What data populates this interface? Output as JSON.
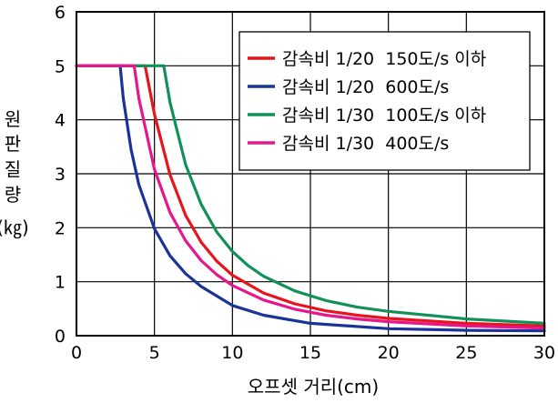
{
  "chart_data": {
    "type": "line",
    "xlabel": "오프셋 거리(cm)",
    "ylabel_lines": [
      "원",
      "판",
      "질",
      "량",
      "(㎏)"
    ],
    "xlim": [
      0,
      30
    ],
    "ylim": [
      0,
      6
    ],
    "xticks": [
      "0",
      "5",
      "10",
      "15",
      "20",
      "25",
      "30"
    ],
    "yticks": [
      "0",
      "1",
      "2",
      "3",
      "4",
      "5",
      "6"
    ],
    "grid": true,
    "legend_position": "top-right",
    "series": [
      {
        "name": "감속비 1/20  150도/s 이하",
        "color": "#e8141c",
        "x": [
          0,
          4.4,
          5,
          6,
          7,
          8,
          9,
          10,
          12,
          14,
          16,
          18,
          20,
          25,
          30
        ],
        "y": [
          5,
          5,
          4.1,
          2.98,
          2.23,
          1.73,
          1.38,
          1.12,
          0.79,
          0.59,
          0.46,
          0.38,
          0.32,
          0.23,
          0.18
        ]
      },
      {
        "name": "감속비 1/20  600도/s",
        "color": "#1a3399",
        "x": [
          0,
          2.8,
          3,
          3.5,
          4,
          5,
          6,
          7,
          8,
          10,
          12,
          15,
          20,
          25,
          30
        ],
        "y": [
          5,
          5,
          4.4,
          3.45,
          2.8,
          1.98,
          1.48,
          1.15,
          0.91,
          0.56,
          0.38,
          0.23,
          0.13,
          0.1,
          0.09
        ]
      },
      {
        "name": "감속비 1/30  100도/s 이하",
        "color": "#119158",
        "x": [
          0,
          5.6,
          6,
          7,
          8,
          9,
          10,
          11,
          12,
          14,
          16,
          18,
          20,
          25,
          30
        ],
        "y": [
          5,
          5,
          4.32,
          3.17,
          2.43,
          1.92,
          1.56,
          1.3,
          1.1,
          0.83,
          0.65,
          0.53,
          0.45,
          0.31,
          0.23
        ]
      },
      {
        "name": "감속비 1/30  400도/s",
        "color": "#e6178c",
        "x": [
          0,
          3.7,
          4,
          5,
          6,
          7,
          8,
          9,
          10,
          12,
          14,
          16,
          18,
          20,
          25,
          30
        ],
        "y": [
          5,
          5,
          4.4,
          3.08,
          2.28,
          1.76,
          1.39,
          1.13,
          0.93,
          0.66,
          0.49,
          0.38,
          0.31,
          0.26,
          0.18,
          0.14
        ]
      }
    ]
  }
}
